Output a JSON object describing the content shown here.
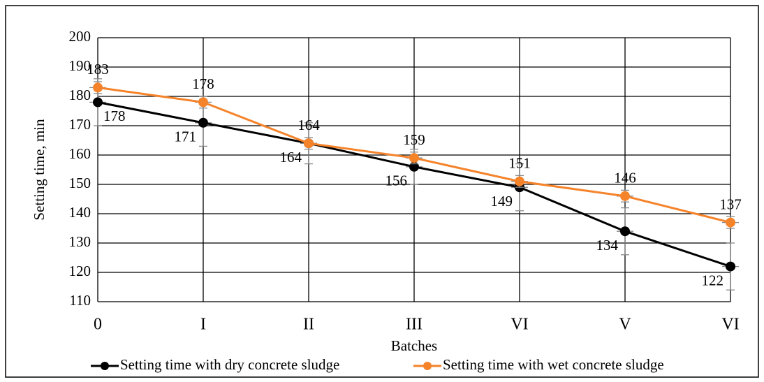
{
  "chart_data": {
    "type": "line",
    "x_label": "Batches",
    "y_label": "Setting time, min",
    "categories": [
      "0",
      "I",
      "II",
      "III",
      "VI",
      "V",
      "VI"
    ],
    "series": [
      {
        "name": "Setting time with dry concrete sludge",
        "color": "#000000",
        "values": [
          178,
          171,
          164,
          156,
          149,
          134,
          122
        ],
        "errors": [
          8,
          8,
          7,
          6,
          8,
          8,
          8
        ]
      },
      {
        "name": "Setting time with wet concrete sludge",
        "color": "#f5832a",
        "values": [
          183,
          178,
          164,
          159,
          151,
          146,
          137
        ],
        "errors": [
          2,
          2,
          2,
          2,
          2,
          2,
          2
        ]
      }
    ],
    "ylim": [
      110,
      200
    ],
    "yticks": [
      110,
      120,
      130,
      140,
      150,
      160,
      170,
      180,
      190,
      200
    ],
    "grid": true
  }
}
